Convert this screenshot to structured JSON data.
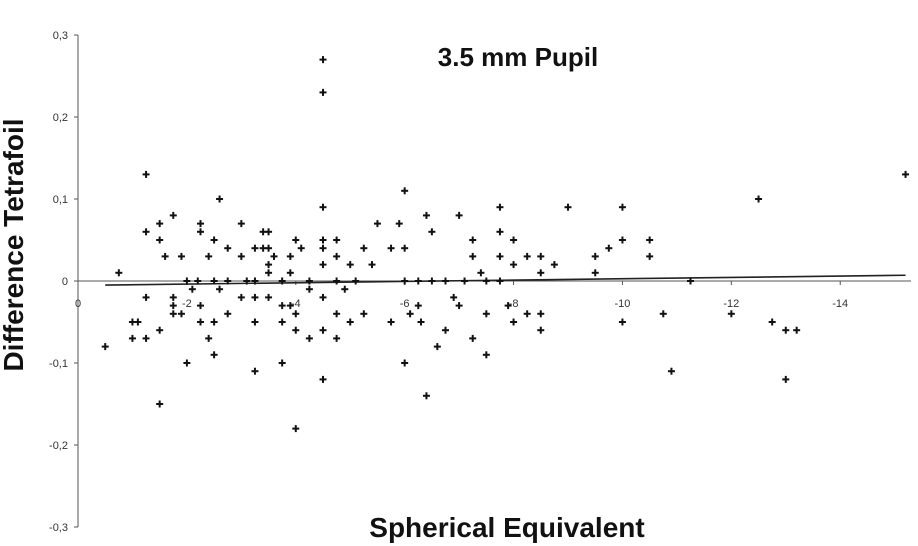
{
  "chart_data": {
    "type": "scatter",
    "title": "3.5 mm Pupil",
    "xlabel": "Spherical Equivalent",
    "ylabel": "Difference Tetrafoil",
    "xlim": [
      0,
      -15.3
    ],
    "ylim": [
      -0.3,
      0.3
    ],
    "x_ticks": [
      {
        "value": 0,
        "label": "0"
      },
      {
        "value": -2,
        "label": "-2"
      },
      {
        "value": -4,
        "label": "-4"
      },
      {
        "value": -6,
        "label": "-6"
      },
      {
        "value": -8,
        "label": "-8"
      },
      {
        "value": -10,
        "label": "-10"
      },
      {
        "value": -12,
        "label": "-12"
      },
      {
        "value": -14,
        "label": "-14"
      }
    ],
    "y_ticks": [
      {
        "value": 0.3,
        "label": "0,3"
      },
      {
        "value": 0.2,
        "label": "0,2"
      },
      {
        "value": 0.1,
        "label": "0,1"
      },
      {
        "value": 0,
        "label": "0"
      },
      {
        "value": -0.1,
        "label": "-0,1"
      },
      {
        "value": -0.2,
        "label": "-0,2"
      },
      {
        "value": -0.3,
        "label": "-0,3"
      }
    ],
    "marker": "+",
    "points": [
      [
        -0.5,
        -0.08
      ],
      [
        -0.75,
        0.01
      ],
      [
        -1.0,
        -0.05
      ],
      [
        -1.0,
        -0.07
      ],
      [
        -1.1,
        -0.05
      ],
      [
        -1.25,
        0.13
      ],
      [
        -1.25,
        0.06
      ],
      [
        -1.25,
        -0.02
      ],
      [
        -1.25,
        -0.07
      ],
      [
        -1.5,
        0.07
      ],
      [
        -1.5,
        0.05
      ],
      [
        -1.5,
        -0.06
      ],
      [
        -1.5,
        -0.15
      ],
      [
        -1.6,
        0.03
      ],
      [
        -1.75,
        0.08
      ],
      [
        -1.75,
        -0.02
      ],
      [
        -1.75,
        -0.03
      ],
      [
        -1.75,
        -0.04
      ],
      [
        -1.9,
        -0.04
      ],
      [
        -1.9,
        0.03
      ],
      [
        -2.0,
        -0.1
      ],
      [
        -2.0,
        0.0
      ],
      [
        -2.1,
        -0.01
      ],
      [
        -2.2,
        0.0
      ],
      [
        -2.25,
        0.07
      ],
      [
        -2.25,
        0.06
      ],
      [
        -2.25,
        -0.03
      ],
      [
        -2.25,
        -0.05
      ],
      [
        -2.4,
        0.03
      ],
      [
        -2.4,
        -0.07
      ],
      [
        -2.5,
        0.05
      ],
      [
        -2.5,
        0.0
      ],
      [
        -2.5,
        -0.09
      ],
      [
        -2.5,
        -0.05
      ],
      [
        -2.6,
        0.1
      ],
      [
        -2.6,
        -0.01
      ],
      [
        -2.75,
        0.04
      ],
      [
        -2.75,
        0.0
      ],
      [
        -2.75,
        -0.04
      ],
      [
        -3.0,
        0.07
      ],
      [
        -3.0,
        -0.02
      ],
      [
        -3.0,
        0.03
      ],
      [
        -3.1,
        0.0
      ],
      [
        -3.25,
        0.04
      ],
      [
        -3.25,
        -0.11
      ],
      [
        -3.25,
        0.0
      ],
      [
        -3.25,
        -0.02
      ],
      [
        -3.25,
        -0.05
      ],
      [
        -3.4,
        0.06
      ],
      [
        -3.4,
        0.04
      ],
      [
        -3.5,
        0.06
      ],
      [
        -3.5,
        0.04
      ],
      [
        -3.5,
        0.02
      ],
      [
        -3.5,
        0.01
      ],
      [
        -3.5,
        -0.02
      ],
      [
        -3.6,
        0.03
      ],
      [
        -3.75,
        -0.03
      ],
      [
        -3.75,
        -0.05
      ],
      [
        -3.75,
        -0.1
      ],
      [
        -3.75,
        0.0
      ],
      [
        -3.9,
        0.03
      ],
      [
        -3.9,
        -0.03
      ],
      [
        -3.9,
        0.01
      ],
      [
        -4.0,
        0.05
      ],
      [
        -4.0,
        -0.04
      ],
      [
        -4.0,
        -0.06
      ],
      [
        -4.0,
        -0.18
      ],
      [
        -4.1,
        0.04
      ],
      [
        -4.25,
        0.0
      ],
      [
        -4.25,
        -0.01
      ],
      [
        -4.25,
        -0.07
      ],
      [
        -4.5,
        0.27
      ],
      [
        -4.5,
        0.23
      ],
      [
        -4.5,
        0.09
      ],
      [
        -4.5,
        0.05
      ],
      [
        -4.5,
        0.04
      ],
      [
        -4.5,
        0.02
      ],
      [
        -4.5,
        -0.02
      ],
      [
        -4.5,
        -0.06
      ],
      [
        -4.5,
        -0.12
      ],
      [
        -4.75,
        0.05
      ],
      [
        -4.75,
        0.03
      ],
      [
        -4.75,
        0.0
      ],
      [
        -4.75,
        -0.04
      ],
      [
        -4.75,
        -0.07
      ],
      [
        -4.9,
        -0.01
      ],
      [
        -5.0,
        0.02
      ],
      [
        -5.0,
        -0.05
      ],
      [
        -5.1,
        0.0
      ],
      [
        -5.25,
        0.04
      ],
      [
        -5.25,
        -0.04
      ],
      [
        -5.4,
        0.02
      ],
      [
        -5.5,
        0.07
      ],
      [
        -5.75,
        -0.05
      ],
      [
        -5.75,
        0.04
      ],
      [
        -5.9,
        0.07
      ],
      [
        -6.0,
        0.11
      ],
      [
        -6.0,
        0.04
      ],
      [
        -6.0,
        0.0
      ],
      [
        -6.0,
        -0.1
      ],
      [
        -6.1,
        -0.04
      ],
      [
        -6.25,
        0.0
      ],
      [
        -6.25,
        -0.03
      ],
      [
        -6.3,
        -0.05
      ],
      [
        -6.4,
        0.08
      ],
      [
        -6.4,
        -0.14
      ],
      [
        -6.5,
        0.06
      ],
      [
        -6.5,
        0.0
      ],
      [
        -6.6,
        -0.08
      ],
      [
        -6.75,
        -0.06
      ],
      [
        -6.75,
        0.0
      ],
      [
        -6.9,
        -0.02
      ],
      [
        -7.0,
        0.08
      ],
      [
        -7.0,
        -0.03
      ],
      [
        -7.1,
        0.0
      ],
      [
        -7.25,
        0.05
      ],
      [
        -7.25,
        0.03
      ],
      [
        -7.25,
        -0.07
      ],
      [
        -7.4,
        0.01
      ],
      [
        -7.5,
        0.0
      ],
      [
        -7.5,
        -0.04
      ],
      [
        -7.5,
        -0.09
      ],
      [
        -7.75,
        0.09
      ],
      [
        -7.75,
        0.06
      ],
      [
        -7.75,
        0.03
      ],
      [
        -7.75,
        0.0
      ],
      [
        -7.9,
        -0.03
      ],
      [
        -8.0,
        0.05
      ],
      [
        -8.0,
        0.02
      ],
      [
        -8.0,
        -0.05
      ],
      [
        -8.25,
        0.03
      ],
      [
        -8.25,
        -0.04
      ],
      [
        -8.5,
        0.03
      ],
      [
        -8.5,
        0.01
      ],
      [
        -8.5,
        -0.04
      ],
      [
        -8.5,
        -0.06
      ],
      [
        -8.75,
        0.02
      ],
      [
        -9.0,
        0.09
      ],
      [
        -9.5,
        0.03
      ],
      [
        -9.5,
        0.01
      ],
      [
        -9.75,
        0.04
      ],
      [
        -10.0,
        0.09
      ],
      [
        -10.0,
        0.05
      ],
      [
        -10.0,
        -0.05
      ],
      [
        -10.5,
        0.05
      ],
      [
        -10.5,
        0.03
      ],
      [
        -10.75,
        -0.04
      ],
      [
        -10.9,
        -0.11
      ],
      [
        -11.25,
        0.0
      ],
      [
        -12.0,
        -0.04
      ],
      [
        -12.5,
        0.1
      ],
      [
        -12.75,
        -0.05
      ],
      [
        -13.0,
        -0.06
      ],
      [
        -13.0,
        -0.12
      ],
      [
        -13.2,
        -0.06
      ],
      [
        -15.2,
        0.13
      ]
    ],
    "trendlines": [
      {
        "x": [
          -0.5,
          -15.2
        ],
        "y": [
          -0.005,
          0.007
        ]
      }
    ],
    "grid": false,
    "legend": false
  }
}
